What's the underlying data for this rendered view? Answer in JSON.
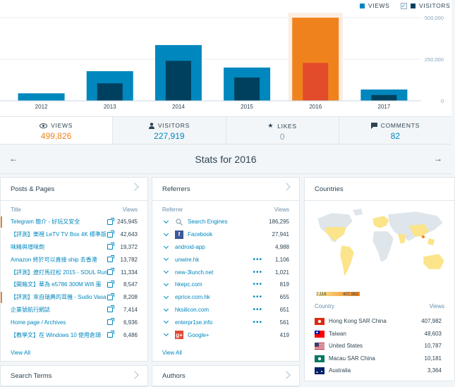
{
  "chart_data": {
    "type": "bar",
    "categories": [
      "2012",
      "2013",
      "2014",
      "2015",
      "2016",
      "2017"
    ],
    "series": [
      {
        "name": "VIEWS",
        "values": [
          45000,
          178000,
          335000,
          200000,
          499826,
          68000
        ]
      },
      {
        "name": "VISITORS",
        "values": [
          0,
          105000,
          240000,
          140000,
          227919,
          35000
        ]
      }
    ],
    "ylim": [
      0,
      500000
    ],
    "yticks": [
      "500,000",
      "250,000",
      "0"
    ],
    "selected_category": "2016",
    "legend": [
      "VIEWS",
      "VISITORS"
    ],
    "colors": {
      "views": "#0087be",
      "visitors": "#00405f",
      "selected_views": "#f0821e",
      "selected_visitors": "#e34c2a",
      "highlight": "#fdeee4"
    }
  },
  "tabs": [
    {
      "label": "VIEWS",
      "value": "499,826",
      "icon": "eye-icon"
    },
    {
      "label": "VISITORS",
      "value": "227,919",
      "icon": "person-icon"
    },
    {
      "label": "LIKES",
      "value": "0",
      "icon": "star-icon"
    },
    {
      "label": "COMMENTS",
      "value": "82",
      "icon": "comment-icon"
    }
  ],
  "nav": {
    "title": "Stats for 2016",
    "prev": "←",
    "next": "→"
  },
  "posts": {
    "header": "Posts & Pages",
    "col_title": "Title",
    "col_views": "Views",
    "view_all": "View All",
    "rows": [
      {
        "title": "Telegram 簡介 - 好玩又安全",
        "views": "245,945",
        "hl": true
      },
      {
        "title": "【評測】樂視 LeTV TV Box 4K 標準版",
        "views": "42,643",
        "hl": false
      },
      {
        "title": "味精與增味劑",
        "views": "19,372",
        "hl": false
      },
      {
        "title": "Amazon 終於可以直接 ship 去香港",
        "views": "13,782",
        "hl": false
      },
      {
        "title": "【評測】遼打馬拉松 2015 - SOUL Run",
        "views": "11,334",
        "hl": false
      },
      {
        "title": "【開箱文】華為 e5786 300M Wifi 蛋",
        "views": "8,547",
        "hl": false
      },
      {
        "title": "【評測】來自瑞典的耳機 - Sudio Vasa",
        "views": "8,208",
        "hl": true
      },
      {
        "title": "企業號航行網誌",
        "views": "7,414",
        "hl": false
      },
      {
        "title": "Home page / Archives",
        "views": "6,936",
        "hl": false
      },
      {
        "title": "【教學文】在 Windows 10 使用倉頡",
        "views": "6,486",
        "hl": false
      }
    ]
  },
  "referrers": {
    "header": "Referrers",
    "col_title": "Referrer",
    "col_views": "Views",
    "view_all": "View All",
    "rows": [
      {
        "name": "Search Engines",
        "views": "186,295",
        "icon": "search-icon",
        "dots": false,
        "iconbox": false
      },
      {
        "name": "Facebook",
        "views": "27,941",
        "icon": "facebook-icon",
        "glyph": "f",
        "color": "#3b5998",
        "dots": false,
        "iconbox": true
      },
      {
        "name": "android-app",
        "views": "4,988",
        "icon": "",
        "dots": false,
        "iconbox": false
      },
      {
        "name": "unwire.hk",
        "views": "1,106",
        "icon": "",
        "dots": true,
        "iconbox": false
      },
      {
        "name": "new-3lunch.net",
        "views": "1,021",
        "icon": "",
        "dots": true,
        "iconbox": false
      },
      {
        "name": "hkepc.com",
        "views": "819",
        "icon": "",
        "dots": true,
        "iconbox": false
      },
      {
        "name": "eprice.com.hk",
        "views": "655",
        "icon": "",
        "dots": true,
        "iconbox": false
      },
      {
        "name": "hksilicon.com",
        "views": "651",
        "icon": "",
        "dots": true,
        "iconbox": false
      },
      {
        "name": "enterpr1se.info",
        "views": "561",
        "icon": "",
        "dots": true,
        "iconbox": false
      },
      {
        "name": "Google+",
        "views": "419",
        "icon": "googleplus-icon",
        "glyph": "g+",
        "color": "#dd4b39",
        "dots": false,
        "iconbox": true
      }
    ]
  },
  "countries": {
    "header": "Countries",
    "scale_min": "2,116",
    "scale_max": "407,982",
    "col_title": "Country",
    "col_views": "Views",
    "rows": [
      {
        "name": "Hong Kong SAR China",
        "views": "407,982",
        "flag": "hong-kong-flag-icon"
      },
      {
        "name": "Taiwan",
        "views": "48,603",
        "flag": "taiwan-flag-icon"
      },
      {
        "name": "United States",
        "views": "10,787",
        "flag": "us-flag-icon"
      },
      {
        "name": "Macau SAR China",
        "views": "10,181",
        "flag": "macau-flag-icon"
      },
      {
        "name": "Australia",
        "views": "3,364",
        "flag": "australia-flag-icon"
      }
    ]
  },
  "bottom": {
    "search_terms": "Search Terms",
    "authors": "Authors"
  }
}
